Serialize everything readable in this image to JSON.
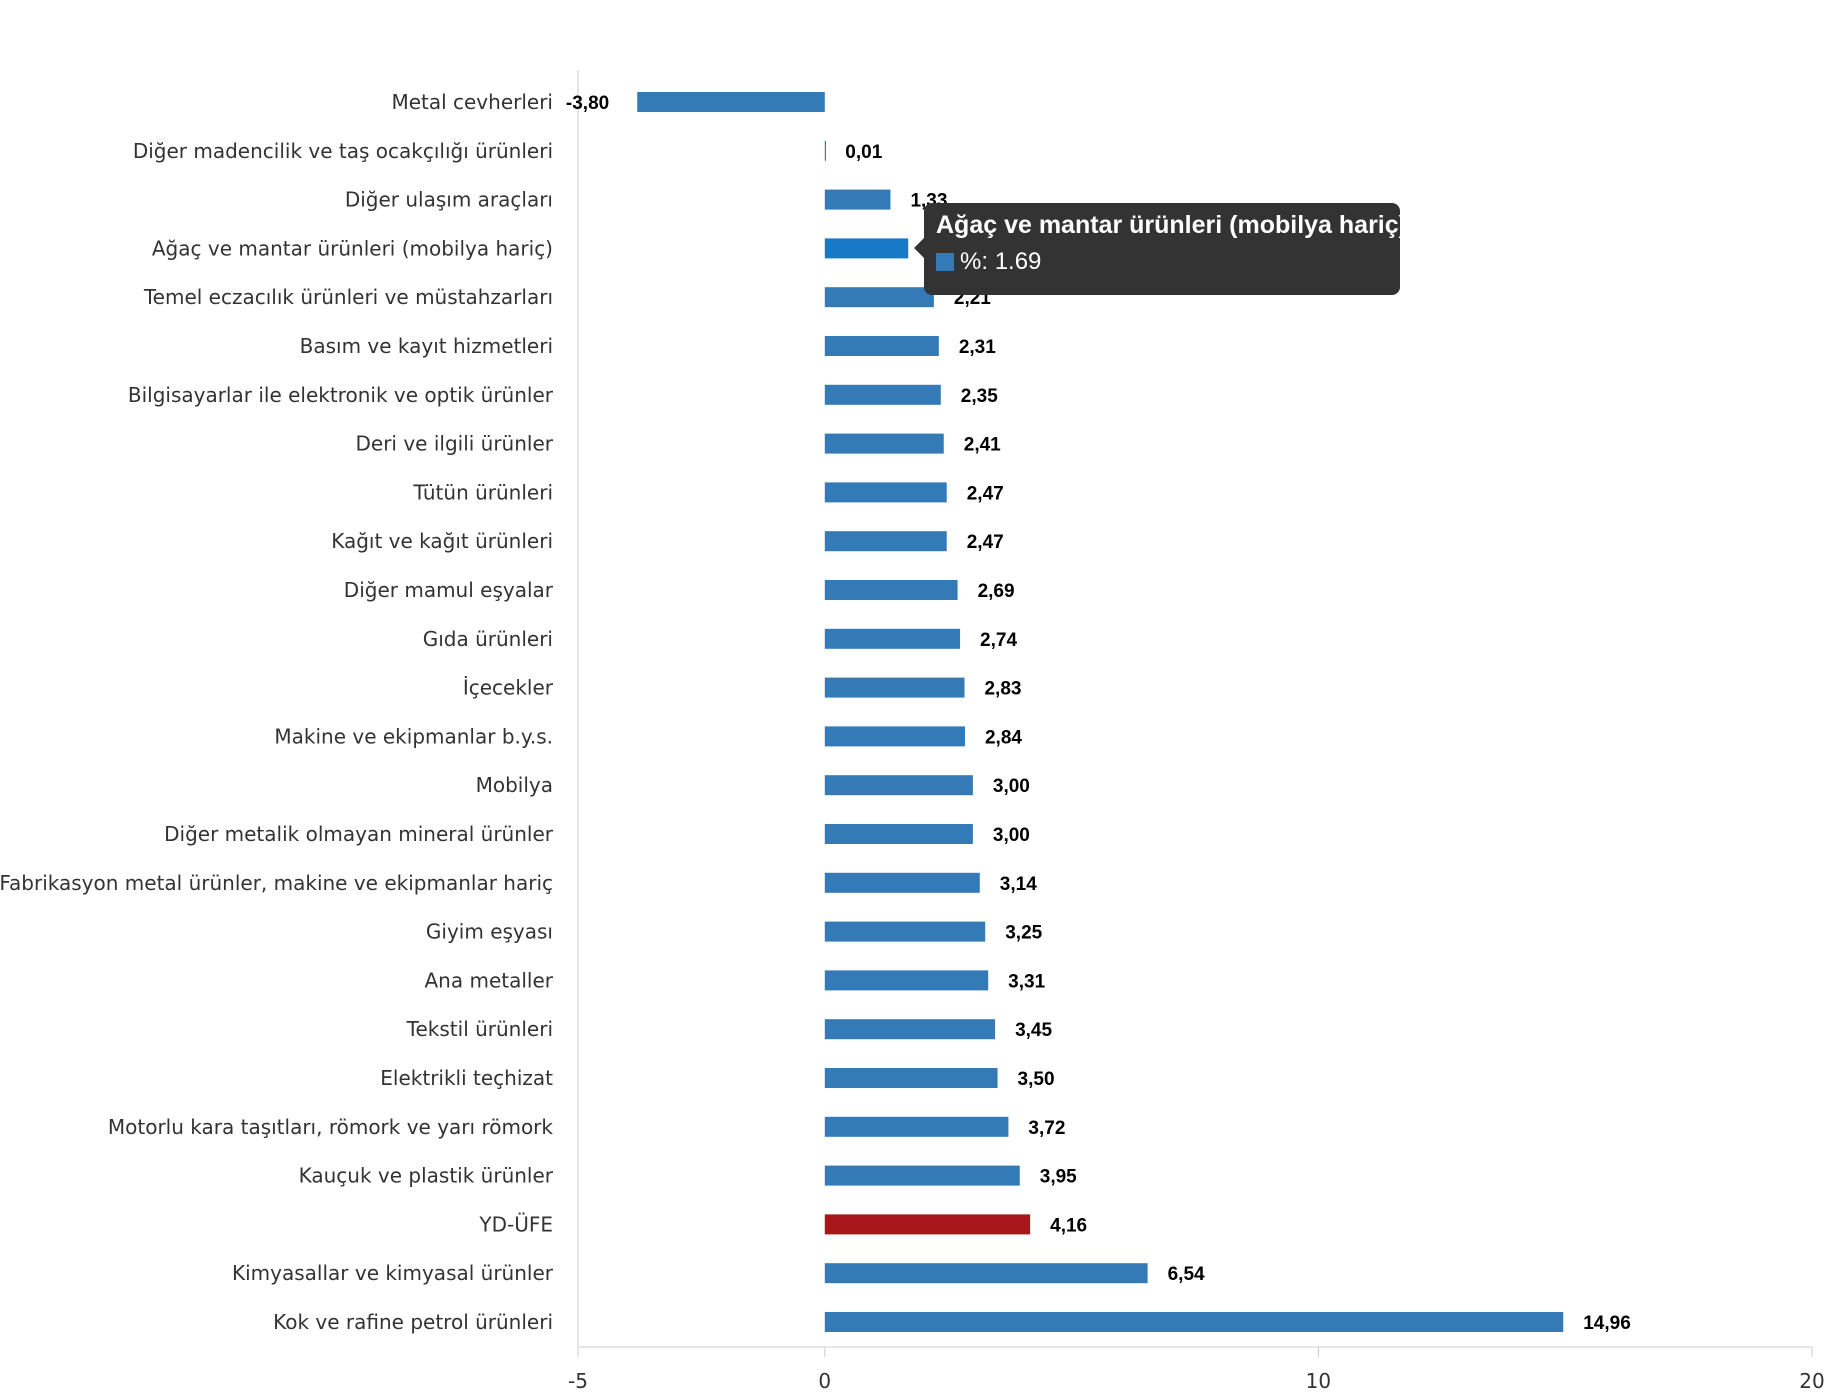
{
  "chart_data": {
    "type": "bar",
    "orientation": "horizontal",
    "categories": [
      "Metal cevherleri",
      "Diğer madencilik ve taş ocakçılığı ürünleri",
      "Diğer ulaşım araçları",
      "Ağaç ve mantar ürünleri (mobilya hariç)",
      "Temel eczacılık ürünleri ve müstahzarları",
      "Basım ve kayıt hizmetleri",
      "Bilgisayarlar ile elektronik ve optik ürünler",
      "Deri ve ilgili ürünler",
      "Tütün ürünleri",
      "Kağıt ve kağıt ürünleri",
      "Diğer mamul eşyalar",
      "Gıda ürünleri",
      "İçecekler",
      "Makine ve ekipmanlar b.y.s.",
      "Mobilya",
      "Diğer metalik olmayan mineral ürünler",
      "Fabrikasyon metal ürünler, makine ve ekipmanlar hariç",
      "Giyim eşyası",
      "Ana metaller",
      "Tekstil ürünleri",
      "Elektrikli teçhizat",
      "Motorlu kara taşıtları, römork ve yarı römork",
      "Kauçuk ve plastik ürünler",
      "YD-ÜFE",
      "Kimyasallar ve kimyasal ürünler",
      "Kok ve rafine petrol ürünleri"
    ],
    "values": [
      -3.8,
      0.01,
      1.33,
      1.69,
      2.21,
      2.31,
      2.35,
      2.41,
      2.47,
      2.47,
      2.69,
      2.74,
      2.83,
      2.84,
      3.0,
      3.0,
      3.14,
      3.25,
      3.31,
      3.45,
      3.5,
      3.72,
      3.95,
      4.16,
      6.54,
      14.96
    ],
    "value_labels": [
      "-3,80",
      "0,01",
      "1,33",
      "1,69",
      "2,21",
      "2,31",
      "2,35",
      "2,41",
      "2,47",
      "2,47",
      "2,69",
      "2,74",
      "2,83",
      "2,84",
      "3,00",
      "3,00",
      "3,14",
      "3,25",
      "3,31",
      "3,45",
      "3,50",
      "3,72",
      "3,95",
      "4,16",
      "6,54",
      "14,96"
    ],
    "xlim": [
      -5,
      20
    ],
    "xticks": [
      -5,
      0,
      10,
      20
    ],
    "xtick_labels": [
      "-5",
      "0",
      "10",
      "20"
    ],
    "grid": false,
    "colors": {
      "bar": "#337ab7",
      "highlight_bar": "#a6161a",
      "hover_bar": "#1879c9",
      "axis": "#cccccc"
    },
    "highlight_category": "YD-ÜFE",
    "hovered_category": "Ağaç ve mantar ürünleri (mobilya hariç)"
  },
  "tooltip": {
    "title": "Ağaç ve mantar ürünleri (mobilya hariç)",
    "series_label": "%",
    "value": "1.69",
    "swatch_color": "#337ab7"
  }
}
